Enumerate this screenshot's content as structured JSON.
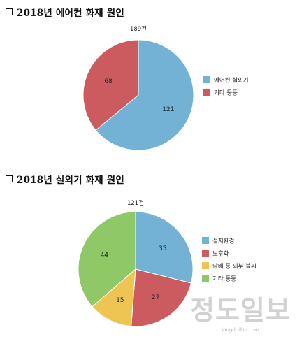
{
  "colors": {
    "blue": "#73b2d5",
    "red": "#cc5b5f",
    "yellow": "#eec453",
    "green": "#8fc867"
  },
  "chart_data": [
    {
      "type": "pie",
      "title": "2018년 에어컨 화재 원인",
      "total_label": "189건",
      "legend_position": "right",
      "slices": [
        {
          "name": "에어컨 실외기",
          "value": 121,
          "color": "#73b2d5"
        },
        {
          "name": "기타 등등",
          "value": 68,
          "color": "#cc5b5f"
        }
      ]
    },
    {
      "type": "pie",
      "title": "2018년 실외기 화재 원인",
      "total_label": "121건",
      "legend_position": "right",
      "slices": [
        {
          "name": "설치환경",
          "value": 35,
          "color": "#73b2d5"
        },
        {
          "name": "노후화",
          "value": 27,
          "color": "#cc5b5f"
        },
        {
          "name": "담배 등 외부 불씨",
          "value": 15,
          "color": "#eec453"
        },
        {
          "name": "기타 등등",
          "value": 44,
          "color": "#8fc867"
        }
      ]
    }
  ],
  "watermark": {
    "logo": "정도일보",
    "url": "jungdoilbo.com"
  }
}
